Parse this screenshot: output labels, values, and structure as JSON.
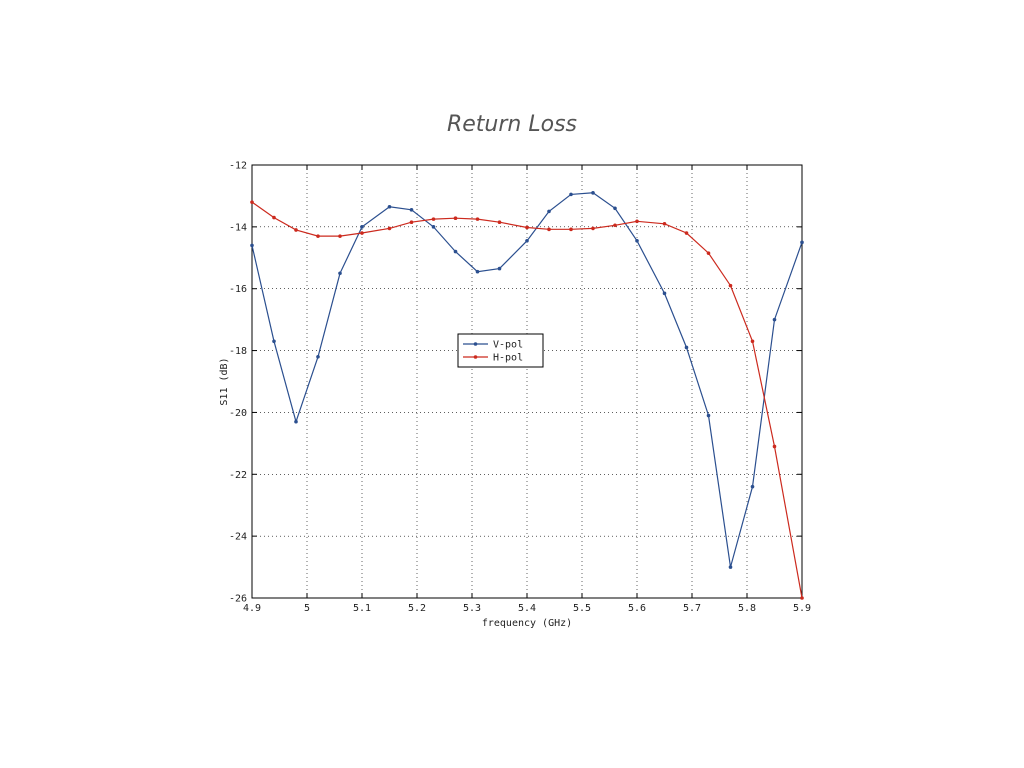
{
  "chart_data": {
    "type": "line",
    "title": "Return Loss",
    "xlabel": "frequency (GHz)",
    "ylabel": "S11 (dB)",
    "xlim": [
      4.9,
      5.9
    ],
    "ylim": [
      -26,
      -12
    ],
    "xticks": [
      "4.9",
      "5",
      "5.1",
      "5.2",
      "5.3",
      "5.4",
      "5.5",
      "5.6",
      "5.7",
      "5.8",
      "5.9"
    ],
    "yticks": [
      "-12",
      "-14",
      "-16",
      "-18",
      "-20",
      "-22",
      "-24",
      "-26"
    ],
    "grid": true,
    "legend_position": "center-left",
    "series": [
      {
        "name": "V-pol",
        "color": "#2b4f8f",
        "x": [
          4.9,
          4.94,
          4.98,
          5.02,
          5.06,
          5.1,
          5.15,
          5.19,
          5.23,
          5.27,
          5.31,
          5.35,
          5.4,
          5.44,
          5.48,
          5.52,
          5.56,
          5.6,
          5.65,
          5.69,
          5.73,
          5.77,
          5.81,
          5.85,
          5.9
        ],
        "y": [
          -14.6,
          -17.7,
          -20.3,
          -18.2,
          -15.5,
          -14.0,
          -13.35,
          -13.45,
          -14.0,
          -14.8,
          -15.45,
          -15.35,
          -14.45,
          -13.5,
          -12.95,
          -12.9,
          -13.4,
          -14.45,
          -16.15,
          -17.9,
          -20.1,
          -25.0,
          -22.4,
          -17.0,
          -14.5
        ]
      },
      {
        "name": "H-pol",
        "color": "#cc2a1e",
        "x": [
          4.9,
          4.94,
          4.98,
          5.02,
          5.06,
          5.1,
          5.15,
          5.19,
          5.23,
          5.27,
          5.31,
          5.35,
          5.4,
          5.44,
          5.48,
          5.52,
          5.56,
          5.6,
          5.65,
          5.69,
          5.73,
          5.77,
          5.81,
          5.85,
          5.9
        ],
        "y": [
          -13.2,
          -13.7,
          -14.1,
          -14.3,
          -14.3,
          -14.2,
          -14.05,
          -13.85,
          -13.75,
          -13.72,
          -13.75,
          -13.85,
          -14.02,
          -14.08,
          -14.08,
          -14.05,
          -13.95,
          -13.82,
          -13.9,
          -14.2,
          -14.85,
          -15.9,
          -17.7,
          -21.1,
          -26.0
        ]
      }
    ]
  }
}
